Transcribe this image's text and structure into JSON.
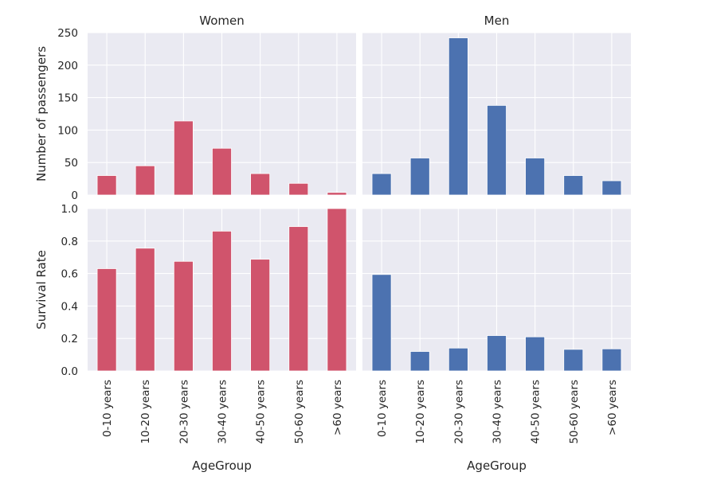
{
  "colors": {
    "panel_bg": "#eaeaf2",
    "grid": "#ffffff",
    "women": "#d0546c",
    "men": "#4c72b0"
  },
  "chart_data": [
    {
      "type": "bar",
      "title": "Women",
      "xlabel": "",
      "ylabel": "Number of passengers",
      "categories": [
        "0-10 years",
        "10-20 years",
        "20-30 years",
        "30-40 years",
        "40-50 years",
        "50-60 years",
        ">60 years"
      ],
      "values": [
        30,
        45,
        114,
        72,
        33,
        18,
        4
      ],
      "ylim": [
        0,
        250
      ],
      "yticks": [
        "0",
        "50",
        "100",
        "150",
        "200",
        "250"
      ],
      "grid": true,
      "color": "women"
    },
    {
      "type": "bar",
      "title": "Men",
      "xlabel": "",
      "ylabel": "",
      "categories": [
        "0-10 years",
        "10-20 years",
        "20-30 years",
        "30-40 years",
        "40-50 years",
        "50-60 years",
        ">60 years"
      ],
      "values": [
        33,
        57,
        242,
        138,
        57,
        30,
        22
      ],
      "ylim": [
        0,
        250
      ],
      "grid": true,
      "color": "men"
    },
    {
      "type": "bar",
      "title": "",
      "xlabel": "AgeGroup",
      "ylabel": "Survival Rate",
      "categories": [
        "0-10 years",
        "10-20 years",
        "20-30 years",
        "30-40 years",
        "40-50 years",
        "50-60 years",
        ">60 years"
      ],
      "values": [
        0.63,
        0.756,
        0.675,
        0.861,
        0.688,
        0.889,
        1.0
      ],
      "ylim": [
        0,
        1.0
      ],
      "yticks": [
        "0.0",
        "0.2",
        "0.4",
        "0.6",
        "0.8",
        "1.0"
      ],
      "grid": true,
      "color": "women"
    },
    {
      "type": "bar",
      "title": "",
      "xlabel": "AgeGroup",
      "ylabel": "",
      "categories": [
        "0-10 years",
        "10-20 years",
        "20-30 years",
        "30-40 years",
        "40-50 years",
        "50-60 years",
        ">60 years"
      ],
      "values": [
        0.594,
        0.12,
        0.141,
        0.218,
        0.21,
        0.133,
        0.136
      ],
      "ylim": [
        0,
        1.0
      ],
      "grid": true,
      "color": "men"
    }
  ]
}
